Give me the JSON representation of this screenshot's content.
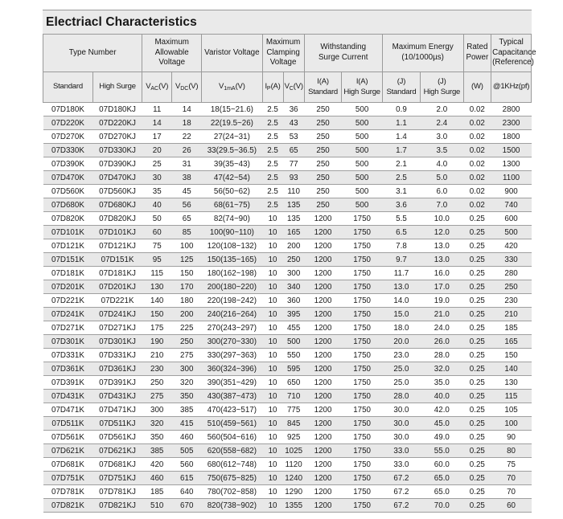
{
  "section": {
    "title": "Electriacl Characteristics"
  },
  "table": {
    "col_widths_pct": [
      10.2,
      10.1,
      6.1,
      6.1,
      12.4,
      4.3,
      4.3,
      7.7,
      8.3,
      7.8,
      8.8,
      5.7,
      8.2
    ],
    "group_headers": [
      {
        "label": "Type Number",
        "colspan": 2
      },
      {
        "label": "Maximum\nAllowable\nVoltage",
        "colspan": 2
      },
      {
        "label": "Varistor Voltage",
        "colspan": 1
      },
      {
        "label": "Maximum\nClamping\nVoltage",
        "colspan": 2
      },
      {
        "label": "Withstanding\nSurge Current",
        "colspan": 2
      },
      {
        "label": "Maximum Energy\n(10/1000µs)",
        "colspan": 2
      },
      {
        "label": "Rated\nPower",
        "colspan": 1
      },
      {
        "label": "Typical\nCapacitance\n(Reference)",
        "colspan": 1
      }
    ],
    "sub_headers": [
      "Standard",
      "High Surge",
      "V{AC}(V)",
      "V{DC}(V)",
      "V{1mA}(V)",
      "I{P}(A)",
      "V{C}(V)",
      "I(A)\nStandard",
      "I(A)\nHigh Surge",
      "(J)\nStandard",
      "(J)\nHigh Surge",
      "(W)",
      "@1KHz(pf)"
    ],
    "rows": [
      [
        "07D180K",
        "07D180KJ",
        "11",
        "14",
        "18(15~21.6)",
        "2.5",
        "36",
        "250",
        "500",
        "0.9",
        "2.0",
        "0.02",
        "2800"
      ],
      [
        "07D220K",
        "07D220KJ",
        "14",
        "18",
        "22(19.5~26)",
        "2.5",
        "43",
        "250",
        "500",
        "1.1",
        "2.4",
        "0.02",
        "2300"
      ],
      [
        "07D270K",
        "07D270KJ",
        "17",
        "22",
        "27(24~31)",
        "2.5",
        "53",
        "250",
        "500",
        "1.4",
        "3.0",
        "0.02",
        "1800"
      ],
      [
        "07D330K",
        "07D330KJ",
        "20",
        "26",
        "33(29.5~36.5)",
        "2.5",
        "65",
        "250",
        "500",
        "1.7",
        "3.5",
        "0.02",
        "1500"
      ],
      [
        "07D390K",
        "07D390KJ",
        "25",
        "31",
        "39(35~43)",
        "2.5",
        "77",
        "250",
        "500",
        "2.1",
        "4.0",
        "0.02",
        "1300"
      ],
      [
        "07D470K",
        "07D470KJ",
        "30",
        "38",
        "47(42~54)",
        "2.5",
        "93",
        "250",
        "500",
        "2.5",
        "5.0",
        "0.02",
        "1100"
      ],
      [
        "07D560K",
        "07D560KJ",
        "35",
        "45",
        "56(50~62)",
        "2.5",
        "110",
        "250",
        "500",
        "3.1",
        "6.0",
        "0.02",
        "900"
      ],
      [
        "07D680K",
        "07D680KJ",
        "40",
        "56",
        "68(61~75)",
        "2.5",
        "135",
        "250",
        "500",
        "3.6",
        "7.0",
        "0.02",
        "740"
      ],
      [
        "07D820K",
        "07D820KJ",
        "50",
        "65",
        "82(74~90)",
        "10",
        "135",
        "1200",
        "1750",
        "5.5",
        "10.0",
        "0.25",
        "600"
      ],
      [
        "07D101K",
        "07D101KJ",
        "60",
        "85",
        "100(90~110)",
        "10",
        "165",
        "1200",
        "1750",
        "6.5",
        "12.0",
        "0.25",
        "500"
      ],
      [
        "07D121K",
        "07D121KJ",
        "75",
        "100",
        "120(108~132)",
        "10",
        "200",
        "1200",
        "1750",
        "7.8",
        "13.0",
        "0.25",
        "420"
      ],
      [
        "07D151K",
        "07D151K",
        "95",
        "125",
        "150(135~165)",
        "10",
        "250",
        "1200",
        "1750",
        "9.7",
        "13.0",
        "0.25",
        "330"
      ],
      [
        "07D181K",
        "07D181KJ",
        "115",
        "150",
        "180(162~198)",
        "10",
        "300",
        "1200",
        "1750",
        "11.7",
        "16.0",
        "0.25",
        "280"
      ],
      [
        "07D201K",
        "07D201KJ",
        "130",
        "170",
        "200(180~220)",
        "10",
        "340",
        "1200",
        "1750",
        "13.0",
        "17.0",
        "0.25",
        "250"
      ],
      [
        "07D221K",
        "07D221K",
        "140",
        "180",
        "220(198~242)",
        "10",
        "360",
        "1200",
        "1750",
        "14.0",
        "19.0",
        "0.25",
        "230"
      ],
      [
        "07D241K",
        "07D241KJ",
        "150",
        "200",
        "240(216~264)",
        "10",
        "395",
        "1200",
        "1750",
        "15.0",
        "21.0",
        "0.25",
        "210"
      ],
      [
        "07D271K",
        "07D271KJ",
        "175",
        "225",
        "270(243~297)",
        "10",
        "455",
        "1200",
        "1750",
        "18.0",
        "24.0",
        "0.25",
        "185"
      ],
      [
        "07D301K",
        "07D301KJ",
        "190",
        "250",
        "300(270~330)",
        "10",
        "500",
        "1200",
        "1750",
        "20.0",
        "26.0",
        "0.25",
        "165"
      ],
      [
        "07D331K",
        "07D331KJ",
        "210",
        "275",
        "330(297~363)",
        "10",
        "550",
        "1200",
        "1750",
        "23.0",
        "28.0",
        "0.25",
        "150"
      ],
      [
        "07D361K",
        "07D361KJ",
        "230",
        "300",
        "360(324~396)",
        "10",
        "595",
        "1200",
        "1750",
        "25.0",
        "32.0",
        "0.25",
        "140"
      ],
      [
        "07D391K",
        "07D391KJ",
        "250",
        "320",
        "390(351~429)",
        "10",
        "650",
        "1200",
        "1750",
        "25.0",
        "35.0",
        "0.25",
        "130"
      ],
      [
        "07D431K",
        "07D431KJ",
        "275",
        "350",
        "430(387~473)",
        "10",
        "710",
        "1200",
        "1750",
        "28.0",
        "40.0",
        "0.25",
        "115"
      ],
      [
        "07D471K",
        "07D471KJ",
        "300",
        "385",
        "470(423~517)",
        "10",
        "775",
        "1200",
        "1750",
        "30.0",
        "42.0",
        "0.25",
        "105"
      ],
      [
        "07D511K",
        "07D511KJ",
        "320",
        "415",
        "510(459~561)",
        "10",
        "845",
        "1200",
        "1750",
        "30.0",
        "45.0",
        "0.25",
        "100"
      ],
      [
        "07D561K",
        "07D561KJ",
        "350",
        "460",
        "560(504~616)",
        "10",
        "925",
        "1200",
        "1750",
        "30.0",
        "49.0",
        "0.25",
        "90"
      ],
      [
        "07D621K",
        "07D621KJ",
        "385",
        "505",
        "620(558~682)",
        "10",
        "1025",
        "1200",
        "1750",
        "33.0",
        "55.0",
        "0.25",
        "80"
      ],
      [
        "07D681K",
        "07D681KJ",
        "420",
        "560",
        "680(612~748)",
        "10",
        "1120",
        "1200",
        "1750",
        "33.0",
        "60.0",
        "0.25",
        "75"
      ],
      [
        "07D751K",
        "07D751KJ",
        "460",
        "615",
        "750(675~825)",
        "10",
        "1240",
        "1200",
        "1750",
        "67.2",
        "65.0",
        "0.25",
        "70"
      ],
      [
        "07D781K",
        "07D781KJ",
        "185",
        "640",
        "780(702~858)",
        "10",
        "1290",
        "1200",
        "1750",
        "67.2",
        "65.0",
        "0.25",
        "70"
      ],
      [
        "07D821K",
        "07D821KJ",
        "510",
        "670",
        "820(738~902)",
        "10",
        "1355",
        "1200",
        "1750",
        "67.2",
        "70.0",
        "0.25",
        "60"
      ]
    ],
    "colors": {
      "header_bg": "#eaeaea",
      "stripe_bg": "#e8e8e8",
      "border": "#9a9a9a"
    }
  }
}
